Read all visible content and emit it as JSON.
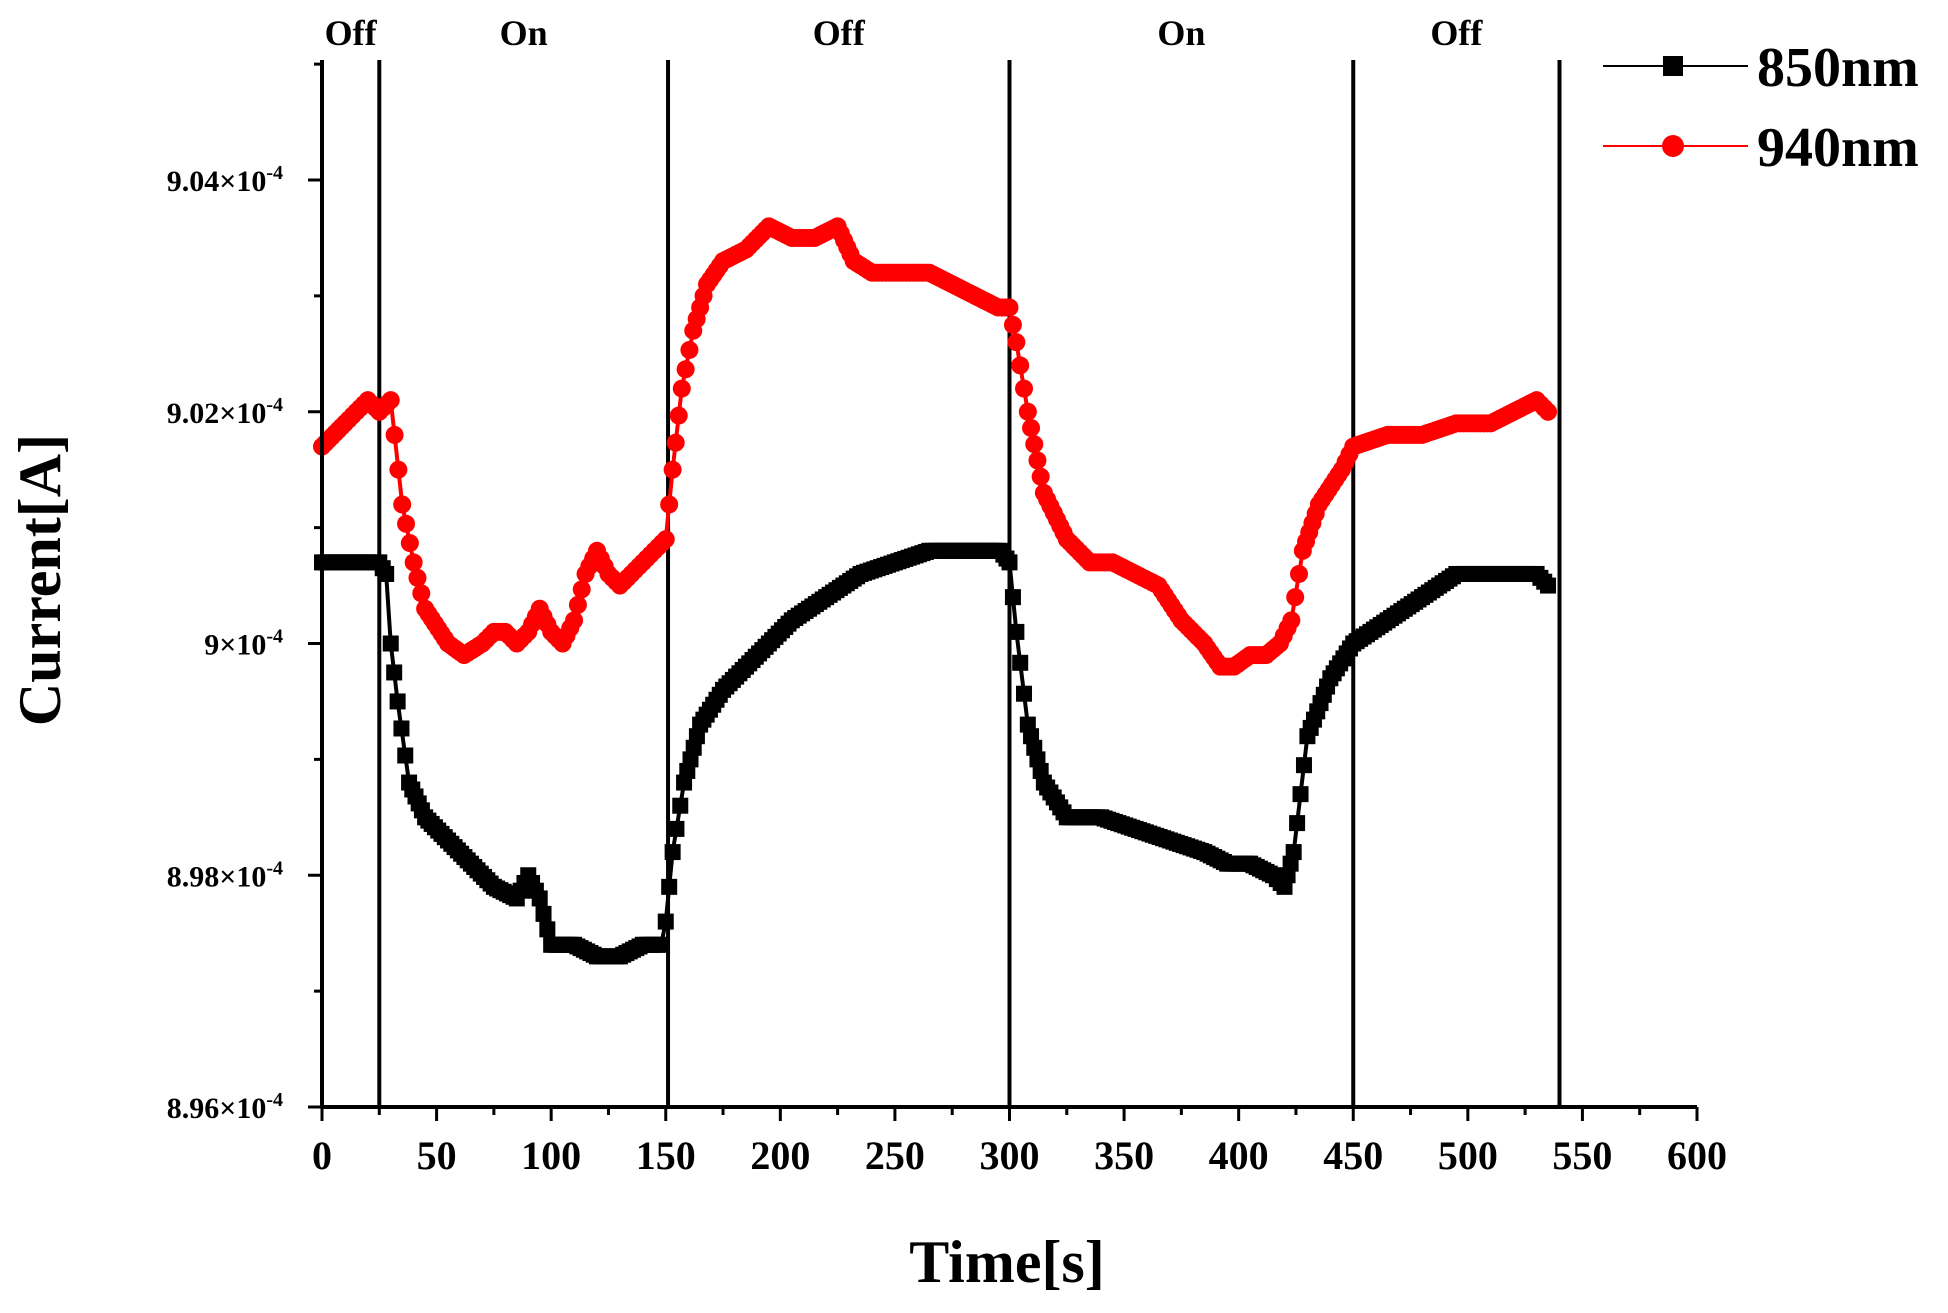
{
  "chart_data": {
    "type": "scatter",
    "title": "",
    "xlabel": "Time[s]",
    "ylabel": "Current[A]",
    "xlim": [
      0,
      600
    ],
    "ylim": [
      0.000896,
      0.000905
    ],
    "x_ticks": [
      0,
      50,
      100,
      150,
      200,
      250,
      300,
      350,
      400,
      450,
      500,
      550,
      600
    ],
    "x_tick_labels": [
      "0",
      "50",
      "100",
      "150",
      "200",
      "250",
      "300",
      "350",
      "400",
      "450",
      "500",
      "550",
      "600"
    ],
    "y_ticks": [
      0.000896,
      0.000898,
      0.0009,
      0.000902,
      0.000904
    ],
    "y_tick_labels": [
      {
        "mantissa": "8.96",
        "exp": "-4"
      },
      {
        "mantissa": "8.98",
        "exp": "-4"
      },
      {
        "mantissa": "9",
        "exp": "-4"
      },
      {
        "mantissa": "9.02",
        "exp": "-4"
      },
      {
        "mantissa": "9.04",
        "exp": "-4"
      }
    ],
    "phase_boundaries": [
      0,
      25,
      151,
      300,
      450,
      540
    ],
    "phases": [
      {
        "label": "Off",
        "start": 0,
        "end": 25
      },
      {
        "label": "On",
        "start": 25,
        "end": 151
      },
      {
        "label": "Off",
        "start": 151,
        "end": 300
      },
      {
        "label": "On",
        "start": 300,
        "end": 450
      },
      {
        "label": "Off",
        "start": 450,
        "end": 540
      }
    ],
    "legend_position": "top-right",
    "series": [
      {
        "name": "850nm",
        "color": "#000000",
        "marker": "square",
        "x": [
          0,
          10,
          20,
          25,
          28,
          30,
          33,
          38,
          45,
          55,
          65,
          75,
          85,
          90,
          95,
          100,
          110,
          120,
          130,
          140,
          148,
          150,
          153,
          158,
          165,
          175,
          185,
          195,
          205,
          220,
          235,
          250,
          265,
          280,
          290,
          296,
          300,
          303,
          308,
          315,
          325,
          340,
          355,
          370,
          385,
          395,
          405,
          415,
          420,
          424,
          430,
          440,
          450,
          465,
          480,
          495,
          510,
          520,
          530,
          535
        ],
        "values": [
          0.0009007,
          0.0009007,
          0.0009007,
          0.0009007,
          0.0009006,
          0.0009,
          0.0008995,
          0.0008988,
          0.0008985,
          0.0008983,
          0.0008981,
          0.0008979,
          0.0008978,
          0.000898,
          0.0008978,
          0.0008974,
          0.0008974,
          0.0008973,
          0.0008973,
          0.0008974,
          0.0008974,
          0.0008976,
          0.0008982,
          0.0008988,
          0.0008993,
          0.0008996,
          0.0008998,
          0.0009,
          0.0009002,
          0.0009004,
          0.0009006,
          0.0009007,
          0.0009008,
          0.0009008,
          0.0009008,
          0.0009008,
          0.0009007,
          0.0009001,
          0.0008993,
          0.0008988,
          0.0008985,
          0.0008985,
          0.0008984,
          0.0008983,
          0.0008982,
          0.0008981,
          0.0008981,
          0.000898,
          0.0008979,
          0.0008982,
          0.0008992,
          0.0008997,
          0.0009,
          0.0009002,
          0.0009004,
          0.0009006,
          0.0009006,
          0.0009006,
          0.0009006,
          0.0009005
        ]
      },
      {
        "name": "940nm",
        "color": "#ff0000",
        "marker": "circle",
        "x": [
          0,
          10,
          15,
          20,
          25,
          30,
          35,
          40,
          45,
          55,
          62,
          70,
          75,
          80,
          85,
          90,
          95,
          100,
          105,
          110,
          115,
          120,
          125,
          130,
          135,
          140,
          145,
          150,
          153,
          157,
          162,
          168,
          175,
          185,
          195,
          205,
          215,
          225,
          232,
          240,
          255,
          265,
          275,
          285,
          295,
          300,
          303,
          308,
          315,
          325,
          335,
          345,
          355,
          365,
          375,
          385,
          392,
          398,
          405,
          412,
          418,
          423,
          428,
          435,
          445,
          450,
          465,
          480,
          495,
          510,
          520,
          530,
          535
        ],
        "values": [
          0.0009017,
          0.0009019,
          0.000902,
          0.0009021,
          0.000902,
          0.0009021,
          0.0009012,
          0.0009007,
          0.0009003,
          0.0009,
          0.0008999,
          0.0009,
          0.0009001,
          0.0009001,
          0.0009,
          0.0009001,
          0.0009003,
          0.0009001,
          0.0009,
          0.0009002,
          0.0009006,
          0.0009008,
          0.0009006,
          0.0009005,
          0.0009006,
          0.0009007,
          0.0009008,
          0.0009009,
          0.0009015,
          0.0009022,
          0.0009027,
          0.0009031,
          0.0009033,
          0.0009034,
          0.0009036,
          0.0009035,
          0.0009035,
          0.0009036,
          0.0009033,
          0.0009032,
          0.0009032,
          0.0009032,
          0.0009031,
          0.000903,
          0.0009029,
          0.0009029,
          0.0009026,
          0.000902,
          0.0009013,
          0.0009009,
          0.0009007,
          0.0009007,
          0.0009006,
          0.0009005,
          0.0009002,
          0.0009,
          0.0008998,
          0.0008998,
          0.0008999,
          0.0008999,
          0.0009,
          0.0009002,
          0.0009008,
          0.0009012,
          0.0009015,
          0.0009017,
          0.0009018,
          0.0009018,
          0.0009019,
          0.0009019,
          0.000902,
          0.0009021,
          0.000902
        ]
      }
    ]
  }
}
